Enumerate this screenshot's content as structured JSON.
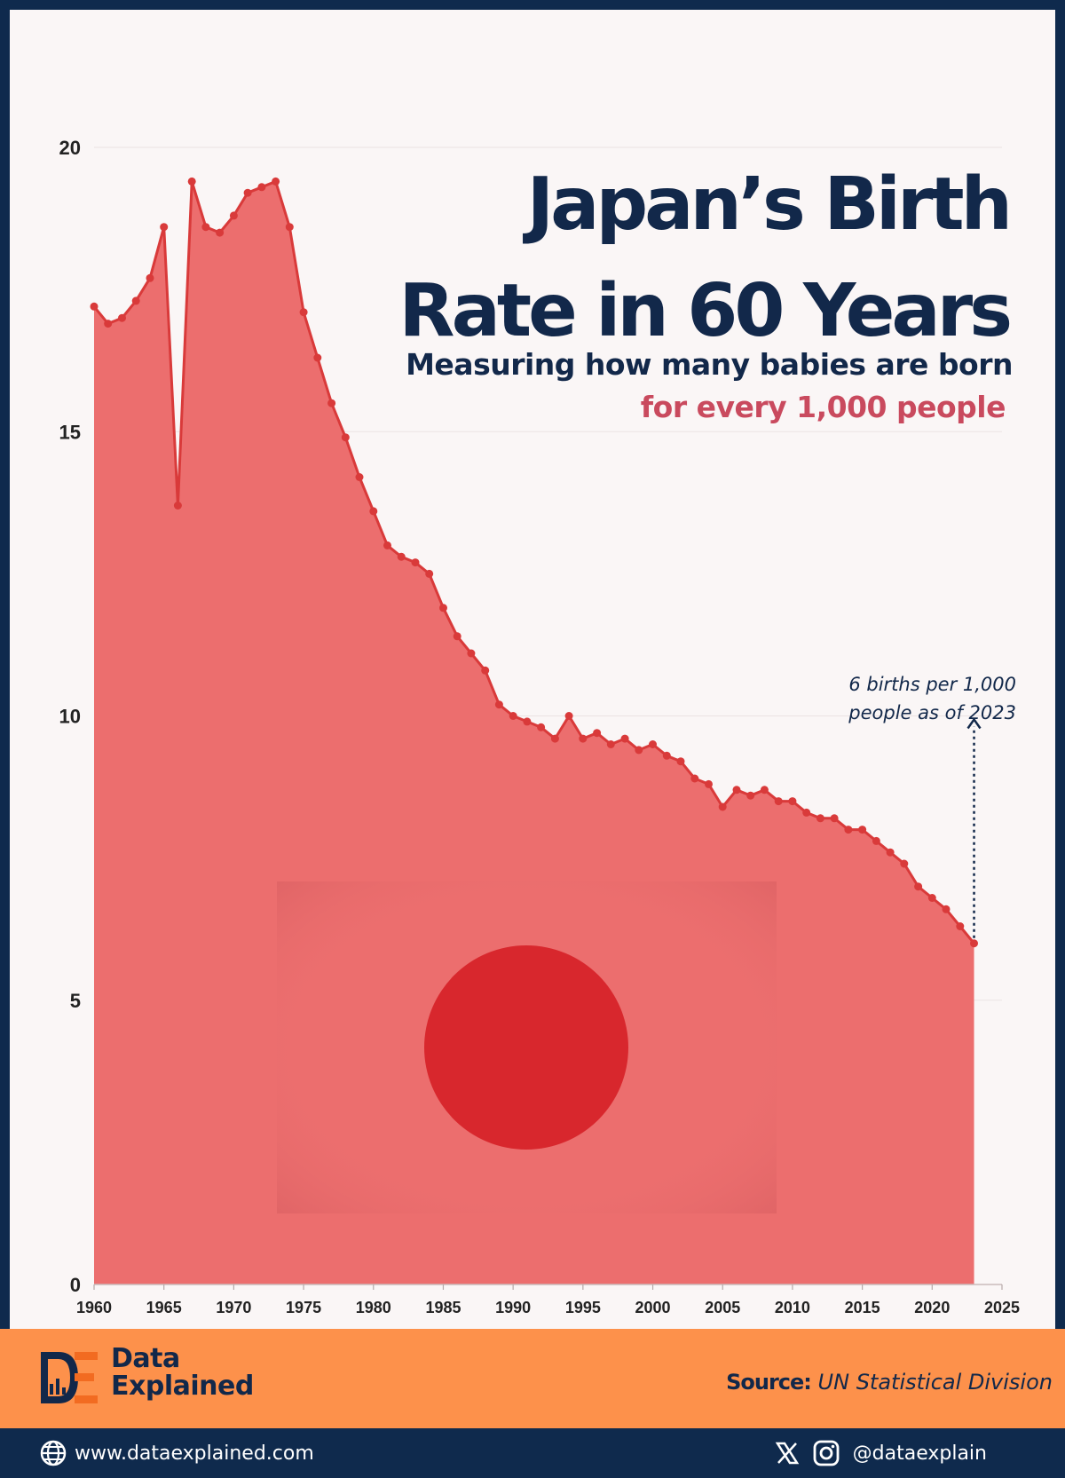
{
  "header": {
    "title_line1": "Japan’s Birth",
    "title_line2": "Rate in 60 Years",
    "subtitle": "Measuring how many babies are born",
    "subtitle_highlight": "for every 1,000 people"
  },
  "annotation": {
    "line1": "6 births per 1,000",
    "line2": "people as of 2023"
  },
  "footer": {
    "brand_line1": "Data",
    "brand_line2": "Explained",
    "source_label": "Source:",
    "source_value": "UN Statistical Division",
    "website": "www.dataexplained.com",
    "handle": "@dataexplain"
  },
  "colors": {
    "area_fill": "#ec6e6e",
    "line": "#d93a3a",
    "navy": "#12284a",
    "accent_pink": "#c94a5e",
    "orange_band": "#fd914b",
    "flag_circle": "#d8272d"
  },
  "icons": [
    "globe-icon",
    "x-logo-icon",
    "instagram-icon",
    "data-explained-logo"
  ],
  "chart_data": {
    "type": "area",
    "title": "Japan’s Birth Rate in 60 Years",
    "xlim": [
      1960,
      2025
    ],
    "ylim": [
      0,
      20
    ],
    "x_ticks": [
      "1960",
      "1965",
      "1970",
      "1975",
      "1980",
      "1985",
      "1990",
      "1995",
      "2000",
      "2005",
      "2010",
      "2015",
      "2020",
      "2025"
    ],
    "y_ticks": [
      "0",
      "5",
      "10",
      "15",
      "20"
    ],
    "grid": "horizontal",
    "x": [
      1960,
      1961,
      1962,
      1963,
      1964,
      1965,
      1966,
      1967,
      1968,
      1969,
      1970,
      1971,
      1972,
      1973,
      1974,
      1975,
      1976,
      1977,
      1978,
      1979,
      1980,
      1981,
      1982,
      1983,
      1984,
      1985,
      1986,
      1987,
      1988,
      1989,
      1990,
      1991,
      1992,
      1993,
      1994,
      1995,
      1996,
      1997,
      1998,
      1999,
      2000,
      2001,
      2002,
      2003,
      2004,
      2005,
      2006,
      2007,
      2008,
      2009,
      2010,
      2011,
      2012,
      2013,
      2014,
      2015,
      2016,
      2017,
      2018,
      2019,
      2020,
      2021,
      2022,
      2023
    ],
    "values": [
      17.2,
      16.9,
      17.0,
      17.3,
      17.7,
      18.6,
      13.7,
      19.4,
      18.6,
      18.5,
      18.8,
      19.2,
      19.3,
      19.4,
      18.6,
      17.1,
      16.3,
      15.5,
      14.9,
      14.2,
      13.6,
      13.0,
      12.8,
      12.7,
      12.5,
      11.9,
      11.4,
      11.1,
      10.8,
      10.2,
      10.0,
      9.9,
      9.8,
      9.6,
      10.0,
      9.6,
      9.7,
      9.5,
      9.6,
      9.4,
      9.5,
      9.3,
      9.2,
      8.9,
      8.8,
      8.4,
      8.7,
      8.6,
      8.7,
      8.5,
      8.5,
      8.3,
      8.2,
      8.2,
      8.0,
      8.0,
      7.8,
      7.6,
      7.4,
      7.0,
      6.8,
      6.6,
      6.3,
      6.0
    ],
    "annotation": "6 births per 1,000 people as of 2023"
  }
}
